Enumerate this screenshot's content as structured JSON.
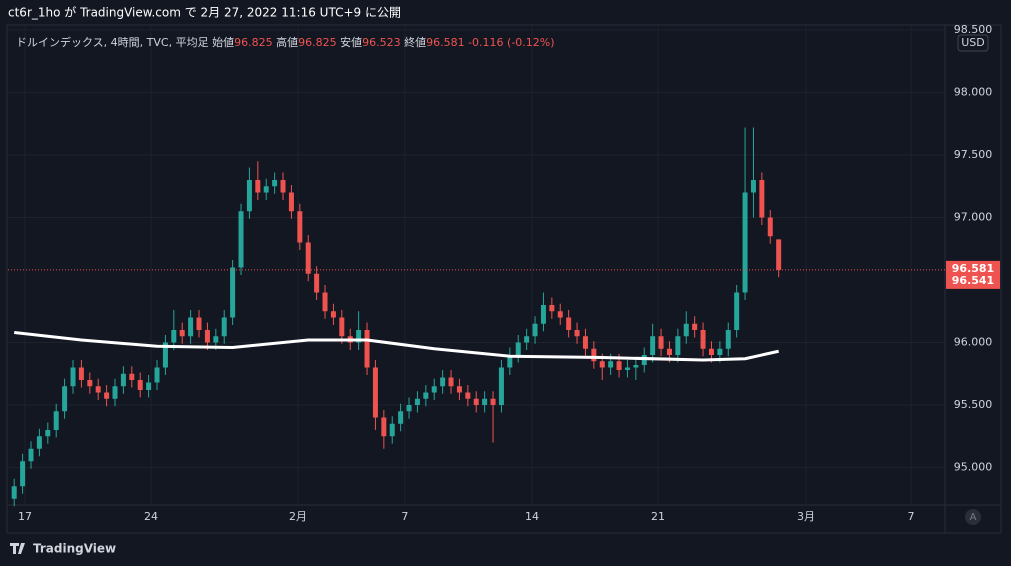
{
  "header": {
    "published": "ct6r_1ho が TradingView.com で 2月 27, 2022 11:16 UTC+9 に公開"
  },
  "footer": {
    "brand": "TradingView"
  },
  "chart_data": {
    "type": "candlestick",
    "symbol": "ドルインデックス, 4時間, TVC, 平均足",
    "legend": {
      "open_label": "始値",
      "open": 96.825,
      "high_label": "高値",
      "high": 96.825,
      "low_label": "安値",
      "low": 96.523,
      "close_label": "終値",
      "close": 96.581,
      "change": -0.116,
      "change_pct": "(-0.12%)"
    },
    "currency": "USD",
    "up_color": "#26a69a",
    "down_color": "#ef5350",
    "ma_color": "#ffffff",
    "xlim": [
      -0.5,
      110.8
    ],
    "ylim": [
      94.7,
      98.54
    ],
    "xticks": [
      {
        "value": 1.29,
        "label": "17"
      },
      {
        "value": 16.29,
        "label": "24"
      },
      {
        "value": 33.79,
        "label": "2月"
      },
      {
        "value": 46.5,
        "label": "7"
      },
      {
        "value": 61.64,
        "label": "14"
      },
      {
        "value": 76.64,
        "label": "21"
      },
      {
        "value": 94.26,
        "label": "3月"
      },
      {
        "value": 106.76,
        "label": "7"
      }
    ],
    "yticks": [
      {
        "value": 95,
        "label": "95.000"
      },
      {
        "value": 95.5,
        "label": "95.500"
      },
      {
        "value": 96,
        "label": "96.000"
      },
      {
        "value": 97,
        "label": "97.000"
      },
      {
        "value": 97.5,
        "label": "97.500"
      },
      {
        "value": 98,
        "label": "98.000"
      },
      {
        "value": 98.5,
        "label": "98.500"
      }
    ],
    "grid": true,
    "price_labels": [
      {
        "value": 96.581,
        "label": "96.581"
      },
      {
        "value": 96.541,
        "label": "96.541"
      }
    ],
    "candles": [
      [
        94.75,
        94.91,
        94.69,
        94.85
      ],
      [
        94.85,
        95.11,
        94.79,
        95.05
      ],
      [
        95.05,
        95.21,
        94.99,
        95.15
      ],
      [
        95.15,
        95.31,
        95.09,
        95.25
      ],
      [
        95.25,
        95.36,
        95.19,
        95.3
      ],
      [
        95.3,
        95.51,
        95.24,
        95.45
      ],
      [
        95.45,
        95.71,
        95.39,
        95.65
      ],
      [
        95.65,
        95.86,
        95.59,
        95.8
      ],
      [
        95.8,
        95.86,
        95.64,
        95.7
      ],
      [
        95.7,
        95.76,
        95.59,
        95.65
      ],
      [
        95.65,
        95.71,
        95.54,
        95.6
      ],
      [
        95.6,
        95.66,
        95.49,
        95.55
      ],
      [
        95.55,
        95.71,
        95.49,
        95.65
      ],
      [
        95.65,
        95.81,
        95.59,
        95.75
      ],
      [
        95.75,
        95.81,
        95.64,
        95.7
      ],
      [
        95.7,
        95.76,
        95.56,
        95.62
      ],
      [
        95.62,
        95.74,
        95.56,
        95.68
      ],
      [
        95.68,
        95.86,
        95.62,
        95.8
      ],
      [
        95.8,
        96.06,
        95.74,
        96.0
      ],
      [
        96.0,
        96.26,
        95.94,
        96.1
      ],
      [
        96.1,
        96.16,
        95.99,
        96.05
      ],
      [
        96.05,
        96.26,
        95.99,
        96.2
      ],
      [
        96.2,
        96.26,
        96.04,
        96.1
      ],
      [
        96.1,
        96.16,
        95.94,
        96.0
      ],
      [
        96.0,
        96.11,
        95.94,
        96.05
      ],
      [
        96.05,
        96.26,
        95.99,
        96.2
      ],
      [
        96.2,
        96.66,
        96.14,
        96.6
      ],
      [
        96.6,
        97.11,
        96.54,
        97.05
      ],
      [
        97.05,
        97.4,
        96.99,
        97.3
      ],
      [
        97.3,
        97.45,
        97.14,
        97.2
      ],
      [
        97.2,
        97.31,
        97.14,
        97.25
      ],
      [
        97.25,
        97.36,
        97.19,
        97.3
      ],
      [
        97.3,
        97.36,
        97.14,
        97.2
      ],
      [
        97.2,
        97.26,
        96.99,
        97.05
      ],
      [
        97.05,
        97.11,
        96.74,
        96.8
      ],
      [
        96.8,
        96.86,
        96.49,
        96.55
      ],
      [
        96.55,
        96.61,
        96.34,
        96.4
      ],
      [
        96.4,
        96.46,
        96.19,
        96.25
      ],
      [
        96.25,
        96.31,
        96.14,
        96.2
      ],
      [
        96.2,
        96.26,
        95.99,
        96.05
      ],
      [
        96.05,
        96.11,
        95.94,
        96.0
      ],
      [
        96.0,
        96.25,
        95.94,
        96.1
      ],
      [
        96.1,
        96.16,
        95.74,
        95.8
      ],
      [
        95.8,
        95.86,
        95.3,
        95.4
      ],
      [
        95.4,
        95.46,
        95.15,
        95.25
      ],
      [
        95.25,
        95.41,
        95.19,
        95.35
      ],
      [
        95.35,
        95.51,
        95.29,
        95.45
      ],
      [
        95.45,
        95.56,
        95.39,
        95.5
      ],
      [
        95.5,
        95.61,
        95.44,
        95.55
      ],
      [
        95.55,
        95.66,
        95.49,
        95.6
      ],
      [
        95.6,
        95.71,
        95.54,
        95.65
      ],
      [
        95.65,
        95.78,
        95.59,
        95.72
      ],
      [
        95.72,
        95.78,
        95.59,
        95.65
      ],
      [
        95.65,
        95.71,
        95.54,
        95.6
      ],
      [
        95.6,
        95.66,
        95.49,
        95.55
      ],
      [
        95.55,
        95.61,
        95.44,
        95.5
      ],
      [
        95.5,
        95.61,
        95.44,
        95.55
      ],
      [
        95.55,
        95.61,
        95.2,
        95.5
      ],
      [
        95.5,
        95.86,
        95.44,
        95.8
      ],
      [
        95.8,
        95.96,
        95.74,
        95.9
      ],
      [
        95.9,
        96.06,
        95.84,
        96.0
      ],
      [
        96.0,
        96.11,
        95.94,
        96.05
      ],
      [
        96.05,
        96.21,
        95.99,
        96.15
      ],
      [
        96.15,
        96.4,
        96.09,
        96.3
      ],
      [
        96.3,
        96.36,
        96.19,
        96.25
      ],
      [
        96.25,
        96.31,
        96.14,
        96.2
      ],
      [
        96.2,
        96.26,
        96.04,
        96.1
      ],
      [
        96.1,
        96.16,
        95.99,
        96.05
      ],
      [
        96.05,
        96.11,
        95.89,
        95.95
      ],
      [
        95.95,
        96.01,
        95.79,
        95.85
      ],
      [
        95.85,
        95.91,
        95.7,
        95.8
      ],
      [
        95.8,
        95.91,
        95.74,
        95.85
      ],
      [
        95.85,
        95.91,
        95.72,
        95.78
      ],
      [
        95.78,
        95.86,
        95.72,
        95.8
      ],
      [
        95.8,
        95.88,
        95.7,
        95.82
      ],
      [
        95.82,
        95.96,
        95.76,
        95.9
      ],
      [
        95.9,
        96.15,
        95.84,
        96.05
      ],
      [
        96.05,
        96.11,
        95.89,
        95.95
      ],
      [
        95.95,
        96.01,
        95.84,
        95.9
      ],
      [
        95.9,
        96.11,
        95.84,
        96.05
      ],
      [
        96.05,
        96.25,
        95.99,
        96.15
      ],
      [
        96.15,
        96.21,
        96.04,
        96.1
      ],
      [
        96.1,
        96.16,
        95.89,
        95.95
      ],
      [
        95.95,
        96.01,
        95.84,
        95.9
      ],
      [
        95.9,
        96.01,
        95.84,
        95.95
      ],
      [
        95.95,
        96.16,
        95.89,
        96.1
      ],
      [
        96.1,
        96.46,
        96.04,
        96.4
      ],
      [
        96.4,
        97.72,
        96.34,
        97.2
      ],
      [
        97.2,
        97.72,
        97.0,
        97.3
      ],
      [
        97.3,
        97.36,
        96.94,
        97.0
      ],
      [
        97.0,
        97.06,
        96.79,
        96.85
      ],
      [
        96.825,
        96.825,
        96.523,
        96.581
      ]
    ],
    "ma": {
      "x": [
        0,
        8,
        17,
        26,
        35,
        42,
        50,
        59,
        70,
        82,
        87,
        91
      ],
      "values": [
        96.08,
        96.02,
        95.97,
        95.96,
        96.02,
        96.02,
        95.95,
        95.89,
        95.88,
        95.86,
        95.87,
        95.93
      ]
    }
  }
}
